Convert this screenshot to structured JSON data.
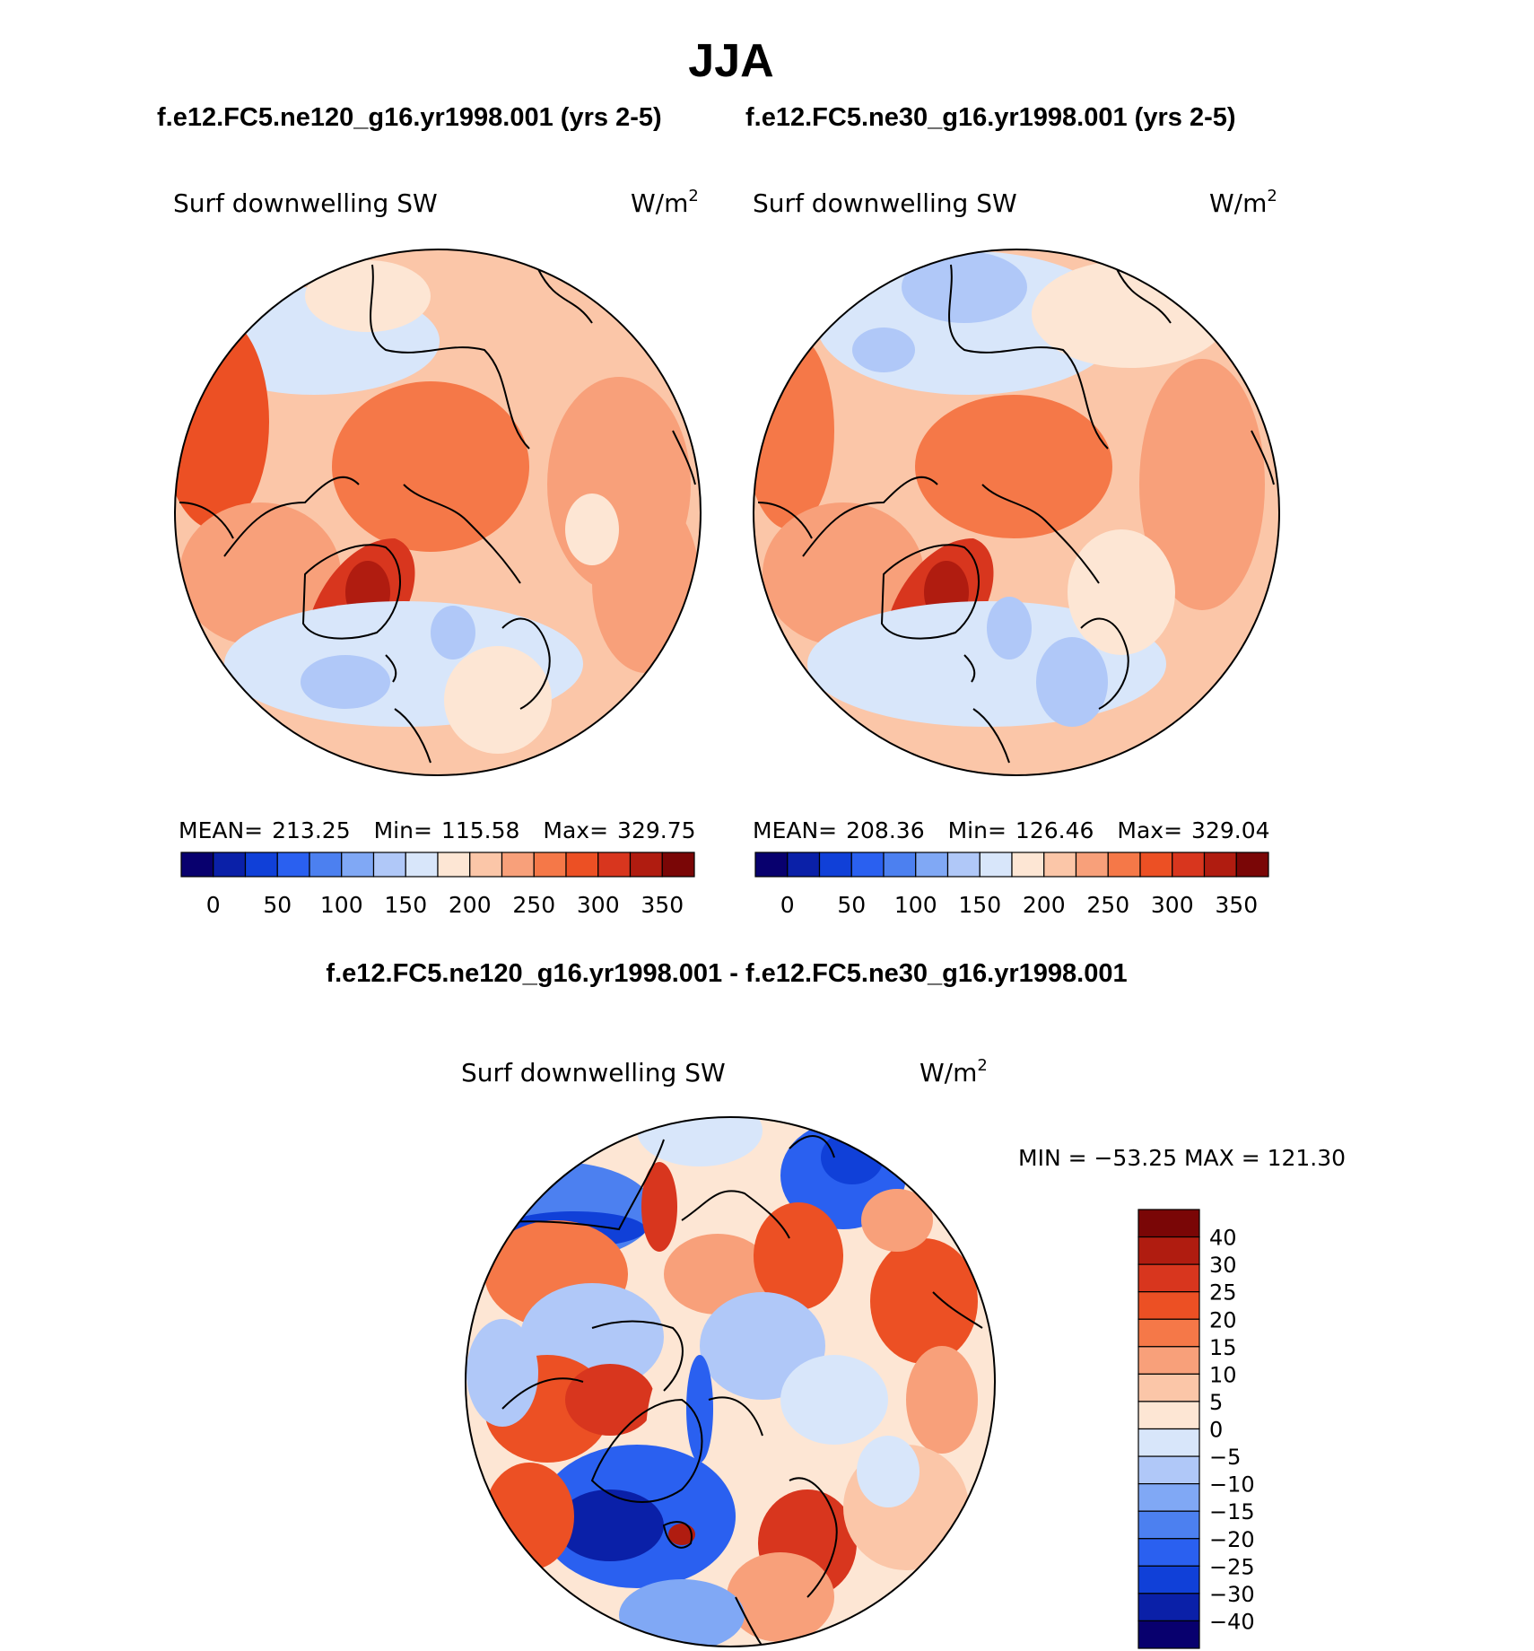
{
  "season": "JJA",
  "top_panels": [
    {
      "case": "f.e12.FC5.ne120_g16.yr1998.001 (yrs 2-5)",
      "variable": "Surf downwelling SW",
      "units": "W/m",
      "units_exp": "2",
      "mean_label": "MEAN=",
      "mean": "213.25",
      "min_label": "Min=",
      "min": "115.58",
      "max_label": "Max=",
      "max": "329.75"
    },
    {
      "case": "f.e12.FC5.ne30_g16.yr1998.001 (yrs 2-5)",
      "variable": "Surf downwelling SW",
      "units": "W/m",
      "units_exp": "2",
      "mean_label": "MEAN=",
      "mean": "208.36",
      "min_label": "Min=",
      "min": "126.46",
      "max_label": "Max=",
      "max": "329.04"
    }
  ],
  "top_colorbar": {
    "colors": [
      "#08006e",
      "#0a20a8",
      "#1040d8",
      "#2a60f0",
      "#4c80f0",
      "#80a8f5",
      "#b0c8f8",
      "#d8e6fa",
      "#fde6d4",
      "#fbc6a8",
      "#f8a07a",
      "#f57848",
      "#ec5024",
      "#d8361e",
      "#b01c10",
      "#7a0606"
    ],
    "tick_labels": [
      "0",
      "50",
      "100",
      "150",
      "200",
      "250",
      "300",
      "350"
    ]
  },
  "diff_panel": {
    "title": "f.e12.FC5.ne120_g16.yr1998.001 - f.e12.FC5.ne30_g16.yr1998.001",
    "variable": "Surf downwelling SW",
    "units": "W/m",
    "units_exp": "2",
    "minmax_text": "MIN = −53.25 MAX = 121.30",
    "colorbar": {
      "colors": [
        "#7a0606",
        "#b01c10",
        "#d8361e",
        "#ec5024",
        "#f57848",
        "#f8a07a",
        "#fbc6a8",
        "#fde6d4",
        "#d8e6fa",
        "#b0c8f8",
        "#80a8f5",
        "#4c80f0",
        "#2a60f0",
        "#1040d8",
        "#0a20a8",
        "#08006e"
      ],
      "tick_labels": [
        "40",
        "30",
        "25",
        "20",
        "15",
        "10",
        "5",
        "0",
        "−5",
        "−10",
        "−15",
        "−20",
        "−25",
        "−30",
        "−40"
      ]
    }
  }
}
